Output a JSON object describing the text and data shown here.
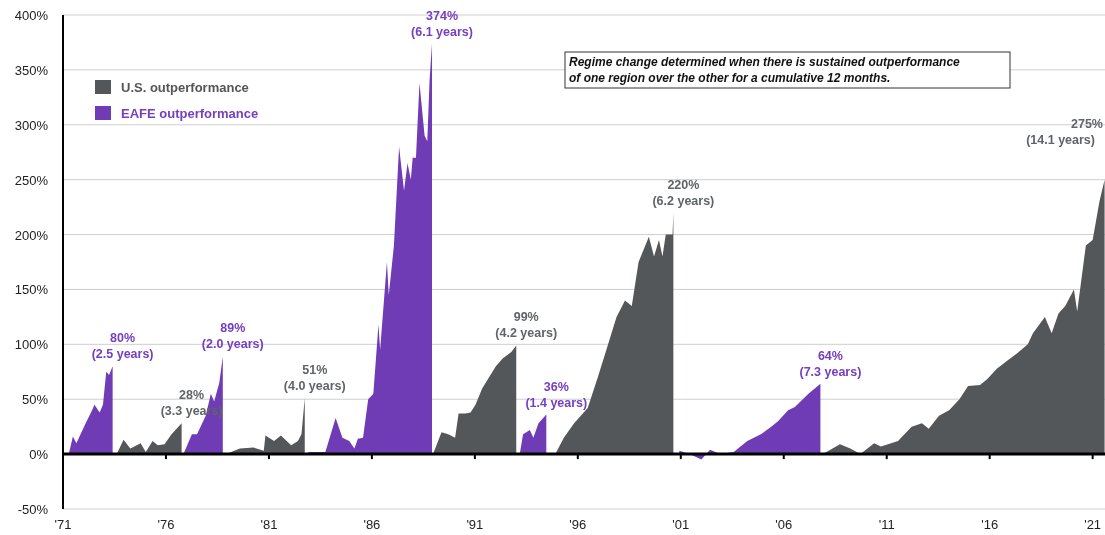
{
  "chart_data": {
    "type": "area",
    "series": [
      {
        "name": "U.S. outperformance",
        "color": "#54575a",
        "x": [
          1973.61,
          1973.94,
          1974.27,
          1974.77,
          1975.02,
          1975.35,
          1975.6,
          1975.93,
          1976.27,
          1976.76,
          1976.77,
          1978.92,
          1979.59,
          1980.25,
          1980.75,
          1980.83,
          1981.25,
          1981.58,
          1982.08,
          1982.41,
          1982.58,
          1982.74,
          1982.75,
          1988.97,
          1989.38,
          1989.71,
          1990.04,
          1990.21,
          1990.54,
          1990.79,
          1991.03,
          1991.36,
          1991.69,
          1992.02,
          1992.35,
          1992.77,
          1993.01,
          1993.02,
          1994.91,
          1995.32,
          1995.82,
          1996.48,
          1996.97,
          1997.47,
          1997.88,
          1998.29,
          1998.62,
          1998.95,
          1999.45,
          1999.7,
          1999.94,
          2000.11,
          2000.27,
          2000.6,
          2000.64,
          2000.65,
          2007.9,
          2008.73,
          2009.23,
          2009.72,
          2010.39,
          2010.72,
          2011.55,
          2012.21,
          2012.71,
          2013.04,
          2013.54,
          2014.03,
          2014.53,
          2014.95,
          2015.53,
          2015.86,
          2016.36,
          2016.85,
          2017.35,
          2017.85,
          2018.1,
          2018.68,
          2019.01,
          2019.34,
          2019.67,
          2020.09,
          2020.25,
          2020.67,
          2021.0,
          2021.33,
          2021.58
        ],
        "values": [
          0,
          13,
          5,
          10,
          2,
          12,
          8,
          9,
          18,
          28,
          null,
          0,
          5,
          6,
          3,
          17,
          12,
          17,
          8,
          12,
          18,
          51,
          null,
          0,
          20,
          18,
          15,
          37,
          37,
          38,
          45,
          60,
          70,
          80,
          87,
          93,
          99,
          null,
          0,
          15,
          28,
          42,
          70,
          100,
          125,
          140,
          135,
          175,
          198,
          180,
          195,
          180,
          200,
          200,
          220,
          null,
          0,
          9,
          5,
          0,
          10,
          7,
          12,
          25,
          28,
          23,
          35,
          40,
          50,
          62,
          63,
          68,
          78,
          85,
          92,
          100,
          110,
          125,
          110,
          128,
          135,
          150,
          130,
          190,
          195,
          230,
          250
        ]
      },
      {
        "name": "EAFE outperformance",
        "color": "#6f3cb5",
        "x": [
          1971.28,
          1971.48,
          1971.65,
          1972.1,
          1972.36,
          1972.53,
          1972.78,
          1972.94,
          1973.1,
          1973.24,
          1973.41,
          1973.42,
          1976.85,
          1977.26,
          1977.51,
          1977.93,
          1978.18,
          1978.34,
          1978.59,
          1978.76,
          1978.77,
          1982.91,
          1983.74,
          1984.24,
          1984.57,
          1984.9,
          1985.15,
          1985.32,
          1985.57,
          1985.82,
          1986.07,
          1986.32,
          1986.4,
          1986.73,
          1986.82,
          1987.07,
          1987.32,
          1987.56,
          1987.73,
          1987.89,
          1987.98,
          1988.14,
          1988.31,
          1988.56,
          1988.69,
          1988.8,
          1988.92,
          1988.93,
          1993.18,
          1993.34,
          1993.67,
          1993.84,
          1994.09,
          1994.47,
          1994.48,
          2000.93,
          2001.43,
          2002.0,
          2002.42,
          2002.91,
          2003.57,
          2004.23,
          2004.89,
          2005.39,
          2005.72,
          2006.21,
          2006.54,
          2007.2,
          2007.78
        ],
        "values": [
          0,
          16,
          10,
          28,
          38,
          45,
          38,
          45,
          75,
          72,
          80,
          null,
          0,
          18,
          18,
          35,
          55,
          48,
          65,
          89,
          null,
          2,
          2,
          33,
          15,
          12,
          5,
          14,
          15,
          50,
          55,
          118,
          95,
          175,
          145,
          190,
          280,
          240,
          265,
          250,
          270,
          270,
          338,
          290,
          285,
          340,
          374,
          null,
          0,
          18,
          22,
          15,
          28,
          36,
          null,
          3,
          0,
          -5,
          4,
          0,
          2,
          12,
          18,
          25,
          30,
          40,
          43,
          55,
          64
        ]
      }
    ],
    "xlim": [
      1971,
      2021.6
    ],
    "xticks": [
      {
        "value": 1971,
        "label": "'71"
      },
      {
        "value": 1976,
        "label": "'76"
      },
      {
        "value": 1981,
        "label": "'81"
      },
      {
        "value": 1986,
        "label": "'86"
      },
      {
        "value": 1991,
        "label": "'91"
      },
      {
        "value": 1996,
        "label": "'96"
      },
      {
        "value": 2001,
        "label": "'01"
      },
      {
        "value": 2006,
        "label": "'06"
      },
      {
        "value": 2011,
        "label": "'11"
      },
      {
        "value": 2016,
        "label": "'16"
      },
      {
        "value": 2021,
        "label": "'21"
      }
    ],
    "ylim": [
      -50,
      400
    ],
    "yticks": [
      {
        "value": -50,
        "label": "-50%"
      },
      {
        "value": 0,
        "label": "0%"
      },
      {
        "value": 50,
        "label": "50%"
      },
      {
        "value": 100,
        "label": "100%"
      },
      {
        "value": 150,
        "label": "150%"
      },
      {
        "value": 200,
        "label": "200%"
      },
      {
        "value": 250,
        "label": "250%"
      },
      {
        "value": 300,
        "label": "300%"
      },
      {
        "value": 350,
        "label": "350%"
      },
      {
        "value": 400,
        "label": "400%"
      }
    ],
    "grid": "y",
    "legend": "top left",
    "annotations": [
      {
        "text": "80%\n(2.5 years)",
        "x": 1973.41,
        "y": 80
      },
      {
        "text": "28%\n(3.3 years)",
        "x": 1976.76,
        "y": 28
      },
      {
        "text": "89%\n(2.0 years)",
        "x": 1978.76,
        "y": 89
      },
      {
        "text": "51%\n(4.0 years)",
        "x": 1982.74,
        "y": 51
      },
      {
        "text": "374%\n(6.1 years)",
        "x": 1988.92,
        "y": 374
      },
      {
        "text": "99%\n(4.2 years)",
        "x": 1993.01,
        "y": 99
      },
      {
        "text": "36%\n(1.4 years)",
        "x": 1994.47,
        "y": 36
      },
      {
        "text": "220%\n(6.2 years)",
        "x": 2000.64,
        "y": 220
      },
      {
        "text": "64%\n(7.3 years)",
        "x": 2007.78,
        "y": 64
      },
      "275%\n(14.1 years)",
      "Regime change determined when there is sustained outperformance\nof one region over the other for a cumulative 12 months."
    ]
  }
}
